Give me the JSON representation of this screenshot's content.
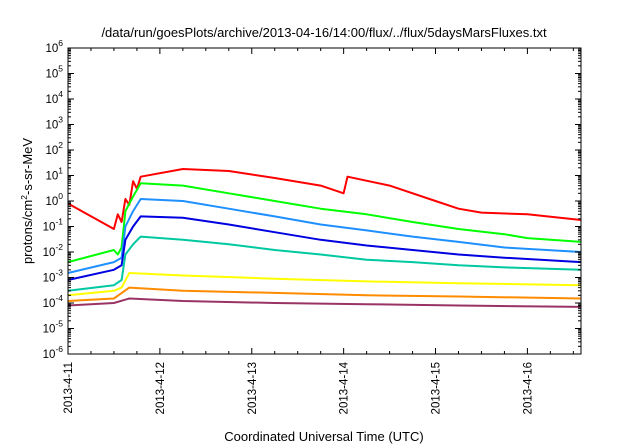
{
  "chart_data": {
    "type": "line",
    "title": "/data/run/goesPlots/archive/2013-04-16/14:00/flux/../flux/5daysMarsFluxes.txt",
    "xlabel": "Coordinated Universal Time (UTC)",
    "ylabel": {
      "pre": "protons/cm",
      "sup": "2",
      "post": "-s-sr-MeV"
    },
    "yscale": "log",
    "ylim": [
      1e-06,
      1000000.0
    ],
    "y_ticks": [
      {
        "base": "10",
        "exp": "-6"
      },
      {
        "base": "10",
        "exp": "-5"
      },
      {
        "base": "10",
        "exp": "-4"
      },
      {
        "base": "10",
        "exp": "-3"
      },
      {
        "base": "10",
        "exp": "-2"
      },
      {
        "base": "10",
        "exp": "-1"
      },
      {
        "base": "10",
        "exp": "0"
      },
      {
        "base": "10",
        "exp": "1"
      },
      {
        "base": "10",
        "exp": "2"
      },
      {
        "base": "10",
        "exp": "3"
      },
      {
        "base": "10",
        "exp": "4"
      },
      {
        "base": "10",
        "exp": "5"
      },
      {
        "base": "10",
        "exp": "6"
      }
    ],
    "x_ticks": [
      "2013-4-11",
      "2013-4-12",
      "2013-4-13",
      "2013-4-14",
      "2013-4-15",
      "2013-4-16"
    ],
    "xlim": [
      "2013-04-11T00:00",
      "2013-04-16T14:00"
    ],
    "grid": false,
    "legend": "none",
    "series": [
      {
        "color": "#ff0000",
        "points": [
          [
            "2013-04-11T00:00",
            0.8
          ],
          [
            "2013-04-11T12:00",
            0.08
          ],
          [
            "2013-04-11T13:00",
            0.3
          ],
          [
            "2013-04-11T14:00",
            0.15
          ],
          [
            "2013-04-11T15:00",
            1.2
          ],
          [
            "2013-04-11T16:00",
            0.7
          ],
          [
            "2013-04-11T17:00",
            6
          ],
          [
            "2013-04-11T18:00",
            3
          ],
          [
            "2013-04-11T19:00",
            9
          ],
          [
            "2013-04-12T06:00",
            18
          ],
          [
            "2013-04-12T18:00",
            15
          ],
          [
            "2013-04-13T06:00",
            8
          ],
          [
            "2013-04-13T18:00",
            4
          ],
          [
            "2013-04-14T00:00",
            2
          ],
          [
            "2013-04-14T01:00",
            9
          ],
          [
            "2013-04-14T12:00",
            4
          ],
          [
            "2013-04-15T00:00",
            1
          ],
          [
            "2013-04-15T06:00",
            0.5
          ],
          [
            "2013-04-15T12:00",
            0.35
          ],
          [
            "2013-04-16T00:00",
            0.3
          ],
          [
            "2013-04-16T14:00",
            0.18
          ]
        ]
      },
      {
        "color": "#00ff00",
        "points": [
          [
            "2013-04-11T00:00",
            0.004
          ],
          [
            "2013-04-11T12:00",
            0.012
          ],
          [
            "2013-04-11T13:00",
            0.008
          ],
          [
            "2013-04-11T14:00",
            0.015
          ],
          [
            "2013-04-11T15:00",
            0.4
          ],
          [
            "2013-04-11T17:00",
            1.5
          ],
          [
            "2013-04-11T19:00",
            5
          ],
          [
            "2013-04-12T06:00",
            4
          ],
          [
            "2013-04-12T18:00",
            2
          ],
          [
            "2013-04-13T06:00",
            1
          ],
          [
            "2013-04-13T18:00",
            0.5
          ],
          [
            "2013-04-14T06:00",
            0.3
          ],
          [
            "2013-04-14T18:00",
            0.15
          ],
          [
            "2013-04-15T06:00",
            0.08
          ],
          [
            "2013-04-15T18:00",
            0.05
          ],
          [
            "2013-04-16T00:00",
            0.035
          ],
          [
            "2013-04-16T14:00",
            0.025
          ]
        ]
      },
      {
        "color": "#1e90ff",
        "points": [
          [
            "2013-04-11T00:00",
            0.0015
          ],
          [
            "2013-04-11T12:00",
            0.004
          ],
          [
            "2013-04-11T14:00",
            0.006
          ],
          [
            "2013-04-11T15:00",
            0.1
          ],
          [
            "2013-04-11T17:00",
            0.4
          ],
          [
            "2013-04-11T19:00",
            1.2
          ],
          [
            "2013-04-12T06:00",
            1
          ],
          [
            "2013-04-12T18:00",
            0.5
          ],
          [
            "2013-04-13T06:00",
            0.25
          ],
          [
            "2013-04-13T18:00",
            0.12
          ],
          [
            "2013-04-14T06:00",
            0.07
          ],
          [
            "2013-04-14T18:00",
            0.04
          ],
          [
            "2013-04-15T06:00",
            0.025
          ],
          [
            "2013-04-15T18:00",
            0.015
          ],
          [
            "2013-04-16T14:00",
            0.01
          ]
        ]
      },
      {
        "color": "#0000e0",
        "points": [
          [
            "2013-04-11T00:00",
            0.0008
          ],
          [
            "2013-04-11T12:00",
            0.002
          ],
          [
            "2013-04-11T14:00",
            0.003
          ],
          [
            "2013-04-11T15:00",
            0.03
          ],
          [
            "2013-04-11T17:00",
            0.1
          ],
          [
            "2013-04-11T19:00",
            0.25
          ],
          [
            "2013-04-12T06:00",
            0.22
          ],
          [
            "2013-04-12T18:00",
            0.12
          ],
          [
            "2013-04-13T06:00",
            0.06
          ],
          [
            "2013-04-13T18:00",
            0.03
          ],
          [
            "2013-04-14T06:00",
            0.018
          ],
          [
            "2013-04-14T18:00",
            0.012
          ],
          [
            "2013-04-15T06:00",
            0.008
          ],
          [
            "2013-04-15T18:00",
            0.006
          ],
          [
            "2013-04-16T14:00",
            0.004
          ]
        ]
      },
      {
        "color": "#00c8a0",
        "points": [
          [
            "2013-04-11T00:00",
            0.0003
          ],
          [
            "2013-04-11T12:00",
            0.0005
          ],
          [
            "2013-04-11T14:00",
            0.0008
          ],
          [
            "2013-04-11T15:00",
            0.008
          ],
          [
            "2013-04-11T17:00",
            0.02
          ],
          [
            "2013-04-11T19:00",
            0.04
          ],
          [
            "2013-04-12T06:00",
            0.03
          ],
          [
            "2013-04-12T18:00",
            0.02
          ],
          [
            "2013-04-13T06:00",
            0.012
          ],
          [
            "2013-04-13T18:00",
            0.008
          ],
          [
            "2013-04-14T06:00",
            0.005
          ],
          [
            "2013-04-14T18:00",
            0.004
          ],
          [
            "2013-04-15T06:00",
            0.003
          ],
          [
            "2013-04-15T18:00",
            0.0025
          ],
          [
            "2013-04-16T14:00",
            0.002
          ]
        ]
      },
      {
        "color": "#ffff00",
        "points": [
          [
            "2013-04-11T00:00",
            0.0002
          ],
          [
            "2013-04-11T12:00",
            0.0003
          ],
          [
            "2013-04-11T14:00",
            0.0004
          ],
          [
            "2013-04-11T16:00",
            0.0015
          ],
          [
            "2013-04-12T06:00",
            0.0012
          ],
          [
            "2013-04-13T06:00",
            0.0009
          ],
          [
            "2013-04-14T06:00",
            0.0007
          ],
          [
            "2013-04-15T06:00",
            0.0006
          ],
          [
            "2013-04-16T14:00",
            0.0005
          ]
        ]
      },
      {
        "color": "#ff8c00",
        "points": [
          [
            "2013-04-11T00:00",
            0.00012
          ],
          [
            "2013-04-11T12:00",
            0.00015
          ],
          [
            "2013-04-11T16:00",
            0.0004
          ],
          [
            "2013-04-12T06:00",
            0.0003
          ],
          [
            "2013-04-13T06:00",
            0.00025
          ],
          [
            "2013-04-14T06:00",
            0.0002
          ],
          [
            "2013-04-15T06:00",
            0.00018
          ],
          [
            "2013-04-16T14:00",
            0.00015
          ]
        ]
      },
      {
        "color": "#993366",
        "points": [
          [
            "2013-04-11T00:00",
            8e-05
          ],
          [
            "2013-04-11T12:00",
            0.0001
          ],
          [
            "2013-04-11T16:00",
            0.00015
          ],
          [
            "2013-04-12T06:00",
            0.00012
          ],
          [
            "2013-04-13T06:00",
            0.0001
          ],
          [
            "2013-04-14T06:00",
            9e-05
          ],
          [
            "2013-04-15T06:00",
            8e-05
          ],
          [
            "2013-04-16T14:00",
            7e-05
          ]
        ]
      }
    ]
  }
}
